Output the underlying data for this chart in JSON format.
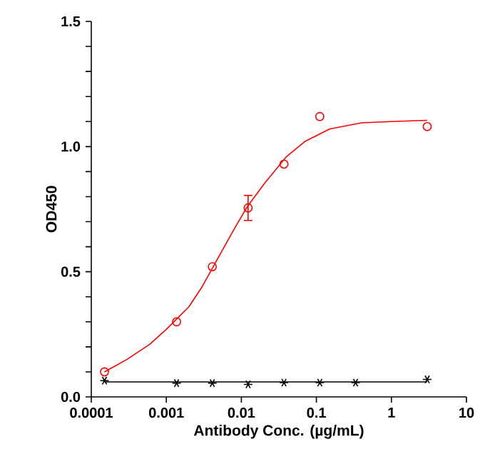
{
  "chart_data": {
    "type": "scatter",
    "xlabel": "Antibody Conc. (µg/mL)",
    "ylabel": "OD450",
    "log": "x",
    "grid": false,
    "xlim": [
      0.0001,
      10
    ],
    "xticks": [
      0.0001,
      0.001,
      0.01,
      0.1,
      1,
      10
    ],
    "ylim": [
      0,
      1.5
    ],
    "yticks": [
      {
        "value": 0,
        "label": "0.0"
      },
      {
        "value": 0.1,
        "label": null
      },
      {
        "value": 0.2,
        "label": null
      },
      {
        "value": 0.3,
        "label": null
      },
      {
        "value": 0.4,
        "label": null
      },
      {
        "value": 0.5,
        "label": "0.5"
      },
      {
        "value": 0.6,
        "label": null
      },
      {
        "value": 0.7,
        "label": null
      },
      {
        "value": 0.8,
        "label": null
      },
      {
        "value": 0.9,
        "label": null
      },
      {
        "value": 1,
        "label": "1.0"
      },
      {
        "value": 1.1,
        "label": null
      },
      {
        "value": 1.2,
        "label": null
      },
      {
        "value": 1.3,
        "label": null
      },
      {
        "value": 1.4,
        "label": null
      },
      {
        "value": 1.5,
        "label": "1.5"
      }
    ],
    "series": [
      {
        "type": "line",
        "color": "#ff0000",
        "marker": "none",
        "x": [
          0.00015,
          0.0003,
          0.0006,
          0.001,
          0.002,
          0.003,
          0.005,
          0.008,
          0.012,
          0.02,
          0.04,
          0.07,
          0.15,
          0.4,
          1,
          3
        ],
        "values": [
          0.1,
          0.15,
          0.21,
          0.27,
          0.36,
          0.44,
          0.56,
          0.67,
          0.76,
          0.85,
          0.96,
          1.02,
          1.07,
          1.095,
          1.1,
          1.105
        ]
      },
      {
        "type": "line",
        "color": "#000000",
        "marker": "none",
        "x": [
          0.00015,
          3
        ],
        "values": [
          0.06,
          0.06
        ]
      },
      {
        "color": "#ff0000",
        "marker": "circle",
        "x": [
          0.00015,
          0.00137,
          0.0041,
          0.0123,
          0.037,
          0.111,
          3
        ],
        "values": [
          0.1,
          0.3,
          0.52,
          0.755,
          0.93,
          1.12,
          1.08
        ],
        "errors": [
          null,
          null,
          null,
          0.05,
          null,
          null,
          null
        ]
      },
      {
        "color": "#000000",
        "marker": "cross",
        "x": [
          0.00015,
          0.00137,
          0.0041,
          0.0123,
          0.037,
          0.111,
          0.333,
          3
        ],
        "values": [
          0.065,
          0.055,
          0.055,
          0.05,
          0.057,
          0.057,
          0.057,
          0.07
        ]
      }
    ]
  }
}
